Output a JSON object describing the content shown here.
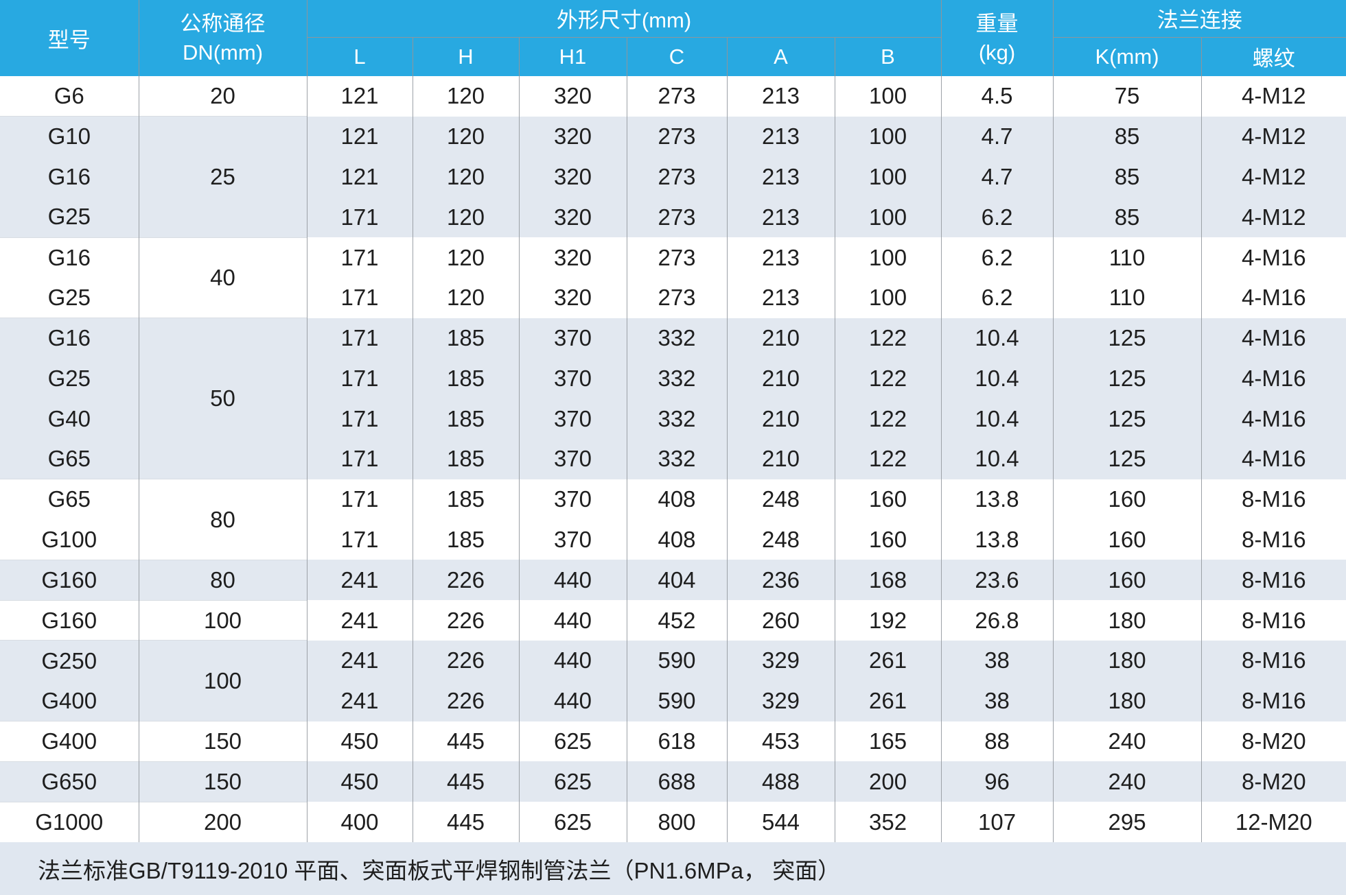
{
  "colors": {
    "header_bg": "#28A9E1",
    "header_text": "#FFFFFF",
    "band_bg": "#E2E8F0",
    "footer_bg": "#E0E7F0",
    "grid_line": "#9CA1A7",
    "body_text": "#1E1E1E"
  },
  "table": {
    "header": {
      "model": "型号",
      "dn_line1": "公称通径",
      "dn_line2": "DN(mm)",
      "dims_group": "外形尺寸(mm)",
      "dims_subcols": [
        "L",
        "H",
        "H1",
        "C",
        "A",
        "B"
      ],
      "weight_line1": "重量",
      "weight_line2": "(kg)",
      "flange_group": "法兰连接",
      "flange_subcols": [
        "K(mm)",
        "螺纹"
      ]
    },
    "groups": [
      {
        "dn": "20",
        "shade": "white",
        "rows": [
          {
            "model": "G6",
            "dims": [
              121,
              120,
              320,
              273,
              213,
              100
            ],
            "weight": "4.5",
            "k": "75",
            "thread": "4-M12"
          }
        ]
      },
      {
        "dn": "25",
        "shade": "band",
        "rows": [
          {
            "model": "G10",
            "dims": [
              121,
              120,
              320,
              273,
              213,
              100
            ],
            "weight": "4.7",
            "k": "85",
            "thread": "4-M12"
          },
          {
            "model": "G16",
            "dims": [
              121,
              120,
              320,
              273,
              213,
              100
            ],
            "weight": "4.7",
            "k": "85",
            "thread": "4-M12"
          },
          {
            "model": "G25",
            "dims": [
              171,
              120,
              320,
              273,
              213,
              100
            ],
            "weight": "6.2",
            "k": "85",
            "thread": "4-M12"
          }
        ]
      },
      {
        "dn": "40",
        "shade": "white",
        "rows": [
          {
            "model": "G16",
            "dims": [
              171,
              120,
              320,
              273,
              213,
              100
            ],
            "weight": "6.2",
            "k": "110",
            "thread": "4-M16"
          },
          {
            "model": "G25",
            "dims": [
              171,
              120,
              320,
              273,
              213,
              100
            ],
            "weight": "6.2",
            "k": "110",
            "thread": "4-M16"
          }
        ]
      },
      {
        "dn": "50",
        "shade": "band",
        "rows": [
          {
            "model": "G16",
            "dims": [
              171,
              185,
              370,
              332,
              210,
              122
            ],
            "weight": "10.4",
            "k": "125",
            "thread": "4-M16"
          },
          {
            "model": "G25",
            "dims": [
              171,
              185,
              370,
              332,
              210,
              122
            ],
            "weight": "10.4",
            "k": "125",
            "thread": "4-M16"
          },
          {
            "model": "G40",
            "dims": [
              171,
              185,
              370,
              332,
              210,
              122
            ],
            "weight": "10.4",
            "k": "125",
            "thread": "4-M16"
          },
          {
            "model": "G65",
            "dims": [
              171,
              185,
              370,
              332,
              210,
              122
            ],
            "weight": "10.4",
            "k": "125",
            "thread": "4-M16"
          }
        ]
      },
      {
        "dn": "80",
        "shade": "white",
        "rows": [
          {
            "model": "G65",
            "dims": [
              171,
              185,
              370,
              408,
              248,
              160
            ],
            "weight": "13.8",
            "k": "160",
            "thread": "8-M16"
          },
          {
            "model": "G100",
            "dims": [
              171,
              185,
              370,
              408,
              248,
              160
            ],
            "weight": "13.8",
            "k": "160",
            "thread": "8-M16"
          }
        ]
      },
      {
        "dn": "80",
        "shade": "band",
        "rows": [
          {
            "model": "G160",
            "dims": [
              241,
              226,
              440,
              404,
              236,
              168
            ],
            "weight": "23.6",
            "k": "160",
            "thread": "8-M16"
          }
        ]
      },
      {
        "dn": "100",
        "shade": "white",
        "rows": [
          {
            "model": "G160",
            "dims": [
              241,
              226,
              440,
              452,
              260,
              192
            ],
            "weight": "26.8",
            "k": "180",
            "thread": "8-M16"
          }
        ]
      },
      {
        "dn": "100",
        "shade": "band",
        "rows": [
          {
            "model": "G250",
            "dims": [
              241,
              226,
              440,
              590,
              329,
              261
            ],
            "weight": "38",
            "k": "180",
            "thread": "8-M16"
          },
          {
            "model": "G400",
            "dims": [
              241,
              226,
              440,
              590,
              329,
              261
            ],
            "weight": "38",
            "k": "180",
            "thread": "8-M16"
          }
        ]
      },
      {
        "dn": "150",
        "shade": "white",
        "rows": [
          {
            "model": "G400",
            "dims": [
              450,
              445,
              625,
              618,
              453,
              165
            ],
            "weight": "88",
            "k": "240",
            "thread": "8-M20"
          }
        ]
      },
      {
        "dn": "150",
        "shade": "band",
        "rows": [
          {
            "model": "G650",
            "dims": [
              450,
              445,
              625,
              688,
              488,
              200
            ],
            "weight": "96",
            "k": "240",
            "thread": "8-M20"
          }
        ]
      },
      {
        "dn": "200",
        "shade": "white",
        "rows": [
          {
            "model": "G1000",
            "dims": [
              400,
              445,
              625,
              800,
              544,
              352
            ],
            "weight": "107",
            "k": "295",
            "thread": "12-M20"
          }
        ]
      }
    ]
  },
  "footer": {
    "note": "法兰标准GB/T9119-2010 平面、突面板式平焊钢制管法兰（PN1.6MPa， 突面）"
  }
}
